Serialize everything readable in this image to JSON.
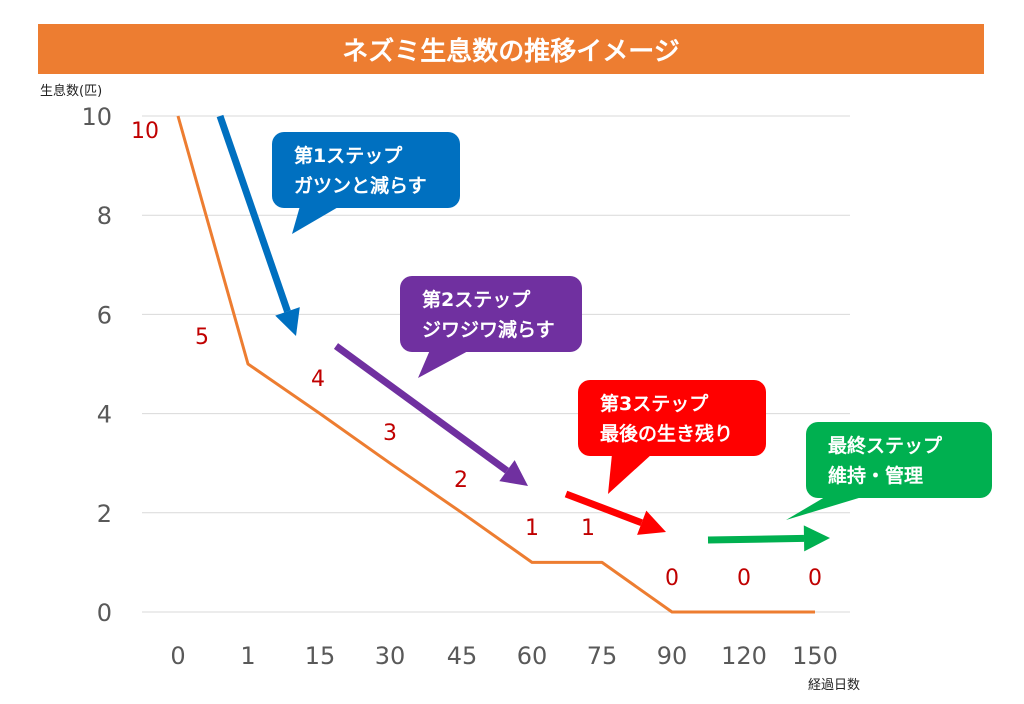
{
  "title": "ネズミ生息数の推移イメージ",
  "chart_data": {
    "type": "line",
    "ylabel": "生息数(匹)",
    "xlabel": "経過日数",
    "categories": [
      "0",
      "1",
      "15",
      "30",
      "45",
      "60",
      "75",
      "90",
      "120",
      "150"
    ],
    "y_ticks": [
      "0",
      "2",
      "4",
      "6",
      "8",
      "10"
    ],
    "ylim": [
      0,
      10
    ],
    "grid": true,
    "series": [
      {
        "values": [
          10,
          5,
          4,
          3,
          2,
          1,
          1,
          0,
          0,
          0
        ],
        "color": "#ED7D31"
      }
    ],
    "data_labels": [
      "10",
      "5",
      "4",
      "3",
      "2",
      "1",
      "1",
      "0",
      "0",
      "0"
    ],
    "data_label_color": "#C00000"
  },
  "annotations": [
    {
      "lines": [
        "第1ステップ",
        "ガツンと減らす"
      ],
      "color": "#0070C0"
    },
    {
      "lines": [
        "第2ステップ",
        "ジワジワ減らす"
      ],
      "color": "#7030A0"
    },
    {
      "lines": [
        "第3ステップ",
        "最後の生き残り"
      ],
      "color": "#FF0000"
    },
    {
      "lines": [
        "最終ステップ",
        "維持・管理"
      ],
      "color": "#00B050"
    }
  ]
}
